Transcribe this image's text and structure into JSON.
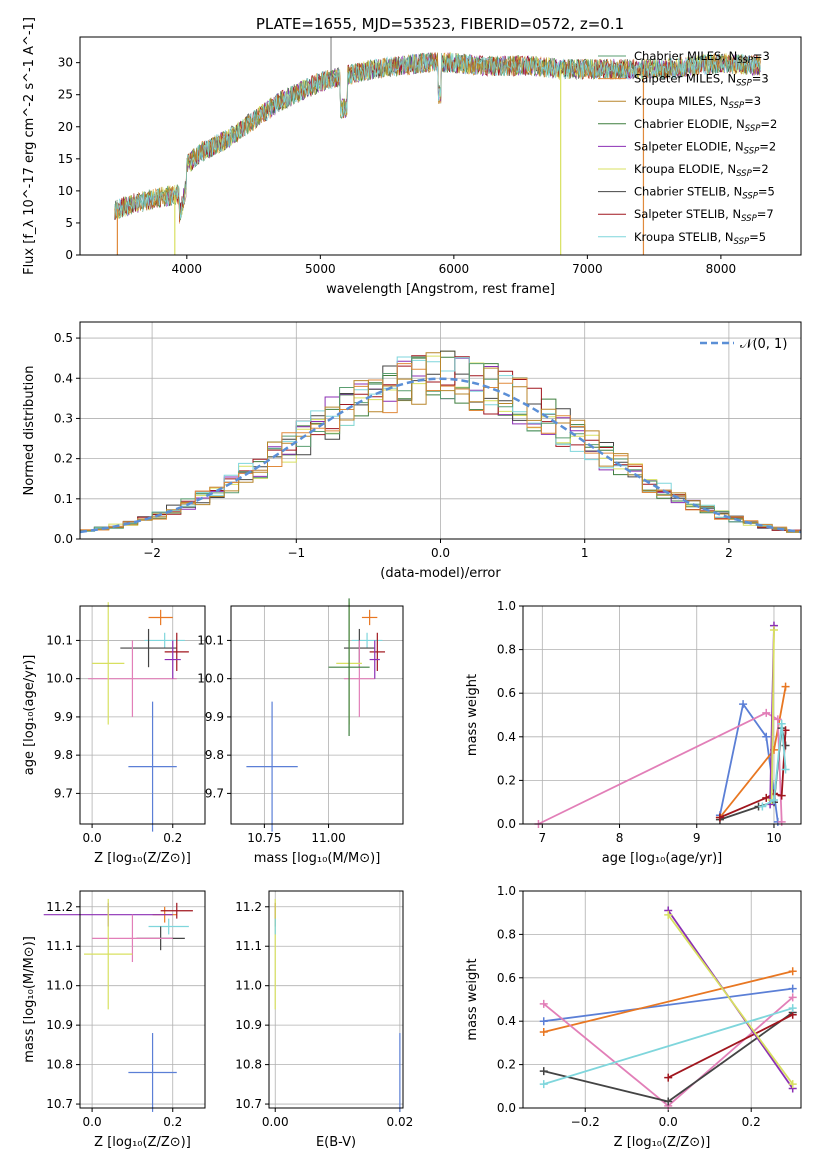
{
  "figure_title": "PLATE=1655, MJD=53523, FIBERID=0572, z=0.1",
  "legend": [
    {
      "label": "Chabrier MILES, N",
      "sub": "SSP",
      "suffix": "=3",
      "color": "#5a9e70"
    },
    {
      "label": "Salpeter MILES, N",
      "sub": "SSP",
      "suffix": "=3",
      "color": "#e08a3c"
    },
    {
      "label": "Kroupa MILES, N",
      "sub": "SSP",
      "suffix": "=3",
      "color": "#b8862b"
    },
    {
      "label": "Chabrier ELODIE, N",
      "sub": "SSP",
      "suffix": "=2",
      "color": "#3f7f3f"
    },
    {
      "label": "Salpeter ELODIE, N",
      "sub": "SSP",
      "suffix": "=2",
      "color": "#8b2fb4"
    },
    {
      "label": "Kroupa ELODIE, N",
      "sub": "SSP",
      "suffix": "=2",
      "color": "#d8e060"
    },
    {
      "label": "Chabrier STELIB, N",
      "sub": "SSP",
      "suffix": "=5",
      "color": "#444444"
    },
    {
      "label": "Salpeter STELIB, N",
      "sub": "SSP",
      "suffix": "=7",
      "color": "#a0161e"
    },
    {
      "label": "Kroupa STELIB, N",
      "sub": "SSP",
      "suffix": "=5",
      "color": "#7fd6dc"
    }
  ],
  "chart_data": [
    {
      "type": "line",
      "name": "spectrum",
      "xlabel": "wavelength [Angstrom, rest frame]",
      "ylabel": "Flux [f_λ 10^-17 erg cm^-2 s^-1 A^-1]",
      "xlim": [
        3200,
        8600
      ],
      "ylim": [
        0,
        34
      ],
      "xticks": [
        4000,
        5000,
        6000,
        7000,
        8000
      ],
      "yticks": [
        0,
        5,
        10,
        15,
        20,
        25,
        30
      ],
      "continuum": {
        "x": [
          3450,
          3600,
          3800,
          3950,
          4000,
          4100,
          4300,
          4500,
          4700,
          5000,
          5200,
          5400,
          5600,
          5800,
          6000,
          6200,
          6400,
          6600,
          6800,
          7000,
          7200,
          7400,
          7600,
          7800,
          8000,
          8300
        ],
        "y": [
          7,
          8,
          9,
          9.5,
          14,
          16,
          18,
          21,
          24,
          27,
          28,
          29,
          29.5,
          30,
          30,
          29.5,
          29.5,
          29.5,
          29,
          29,
          29,
          29,
          29,
          29.5,
          30,
          29.5
        ]
      },
      "grid": false
    },
    {
      "type": "bar",
      "name": "residual histogram",
      "xlabel": "(data-model)/error",
      "ylabel": "Normed distribution",
      "xlim": [
        -2.5,
        2.5
      ],
      "ylim": [
        0,
        0.54
      ],
      "xticks": [
        -2,
        -1,
        0,
        1,
        2
      ],
      "yticks": [
        0.0,
        0.1,
        0.2,
        0.3,
        0.4,
        0.5
      ],
      "normal_curve_label": "𝒩(0, 1)",
      "normal_color": "#5b8fd6",
      "bin_width": 0.1,
      "grid": true
    },
    {
      "type": "scatter",
      "name": "age vs Z",
      "xlabel": "Z [log₁₀(Z/Z⊙)]",
      "ylabel": "age  [log₁₀(age/yr)]",
      "xlim": [
        -0.03,
        0.28
      ],
      "ylim": [
        9.62,
        10.19
      ],
      "xticks": [
        0.0,
        0.2
      ],
      "yticks": [
        9.7,
        9.8,
        9.9,
        10.0,
        10.1
      ],
      "points": [
        {
          "color": "#5b7fd6",
          "x": 0.15,
          "xerr": 0.06,
          "y": 9.77,
          "yerr": 0.17
        },
        {
          "color": "#e87722",
          "x": 0.17,
          "xerr": 0.03,
          "y": 10.16,
          "yerr": 0.02
        },
        {
          "color": "#7fd6dc",
          "x": 0.18,
          "xerr": 0.05,
          "y": 10.1,
          "yerr": 0.02
        },
        {
          "color": "#444444",
          "x": 0.14,
          "xerr": 0.07,
          "y": 10.08,
          "yerr": 0.05
        },
        {
          "color": "#a0161e",
          "x": 0.21,
          "xerr": 0.03,
          "y": 10.07,
          "yerr": 0.05
        },
        {
          "color": "#e27fb8",
          "x": 0.1,
          "xerr": 0.11,
          "y": 10.0,
          "yerr": 0.1
        },
        {
          "color": "#d8e060",
          "x": 0.04,
          "xerr": 0.04,
          "y": 10.04,
          "yerr": 0.16
        },
        {
          "color": "#8b2fb4",
          "x": 0.2,
          "xerr": 0.02,
          "y": 10.05,
          "yerr": 0.05
        }
      ],
      "grid": true
    },
    {
      "type": "scatter",
      "name": "age vs mass",
      "xlabel": "mass [log₁₀(M/M⊙)]",
      "ylabel": "",
      "xlim": [
        10.62,
        11.29
      ],
      "ylim": [
        9.62,
        10.19
      ],
      "xticks": [
        10.75,
        11.0
      ],
      "yticks": [
        9.7,
        9.8,
        9.9,
        10.0,
        10.1
      ],
      "points": [
        {
          "color": "#5b7fd6",
          "x": 10.78,
          "xerr": 0.1,
          "y": 9.77,
          "yerr": 0.17
        },
        {
          "color": "#e87722",
          "x": 11.16,
          "xerr": 0.03,
          "y": 10.16,
          "yerr": 0.02
        },
        {
          "color": "#7fd6dc",
          "x": 11.15,
          "xerr": 0.06,
          "y": 10.1,
          "yerr": 0.02
        },
        {
          "color": "#444444",
          "x": 11.12,
          "xerr": 0.06,
          "y": 10.08,
          "yerr": 0.05
        },
        {
          "color": "#a0161e",
          "x": 11.19,
          "xerr": 0.03,
          "y": 10.07,
          "yerr": 0.05
        },
        {
          "color": "#e27fb8",
          "x": 11.12,
          "xerr": 0.06,
          "y": 10.0,
          "yerr": 0.1
        },
        {
          "color": "#d8e060",
          "x": 11.08,
          "xerr": 0.05,
          "y": 10.04,
          "yerr": 0.16
        },
        {
          "color": "#8b2fb4",
          "x": 11.18,
          "xerr": 0.02,
          "y": 10.05,
          "yerr": 0.05
        },
        {
          "color": "#3f7f3f",
          "x": 11.08,
          "xerr": 0.08,
          "y": 10.03,
          "yerr": 0.18
        }
      ],
      "grid": true
    },
    {
      "type": "line",
      "name": "mass weight vs age",
      "xlabel": "age  [log₁₀(age/yr)]",
      "ylabel": "mass weight",
      "xlim": [
        6.75,
        10.35
      ],
      "ylim": [
        0,
        1
      ],
      "xticks": [
        7,
        8,
        9,
        10
      ],
      "yticks": [
        0.0,
        0.2,
        0.4,
        0.6,
        0.8,
        1.0
      ],
      "series": [
        {
          "color": "#5b7fd6",
          "x": [
            9.3,
            9.6,
            9.9,
            10.05
          ],
          "y": [
            0.04,
            0.55,
            0.4,
            0.01
          ]
        },
        {
          "color": "#e87722",
          "x": [
            9.3,
            10.0,
            10.15
          ],
          "y": [
            0.03,
            0.34,
            0.63
          ]
        },
        {
          "color": "#e27fb8",
          "x": [
            6.95,
            9.9,
            10.05,
            10.1
          ],
          "y": [
            0.0,
            0.51,
            0.48,
            0.01
          ]
        },
        {
          "color": "#444444",
          "x": [
            9.3,
            9.8,
            10.0,
            10.1,
            10.15
          ],
          "y": [
            0.02,
            0.08,
            0.1,
            0.44,
            0.36
          ]
        },
        {
          "color": "#a0161e",
          "x": [
            9.3,
            9.9,
            10.0,
            10.1,
            10.15
          ],
          "y": [
            0.03,
            0.12,
            0.14,
            0.13,
            0.43
          ]
        },
        {
          "color": "#8b2fb4",
          "x": [
            9.95,
            10.0
          ],
          "y": [
            0.09,
            0.91
          ]
        },
        {
          "color": "#d8e060",
          "x": [
            9.97,
            10.0
          ],
          "y": [
            0.11,
            0.89
          ]
        },
        {
          "color": "#7fd6dc",
          "x": [
            9.85,
            10.0,
            10.1,
            10.15
          ],
          "y": [
            0.08,
            0.11,
            0.46,
            0.25
          ]
        }
      ],
      "grid": true
    },
    {
      "type": "scatter",
      "name": "mass vs Z",
      "xlabel": "Z [log₁₀(Z/Z⊙)]",
      "ylabel": "mass [log₁₀(M/M⊙)]",
      "xlim": [
        -0.03,
        0.28
      ],
      "ylim": [
        10.69,
        11.24
      ],
      "xticks": [
        0.0,
        0.2
      ],
      "yticks": [
        10.7,
        10.8,
        10.9,
        11.0,
        11.1,
        11.2
      ],
      "points": [
        {
          "color": "#5b7fd6",
          "x": 0.15,
          "xerr": 0.06,
          "y": 10.78,
          "yerr": 0.1
        },
        {
          "color": "#e87722",
          "x": 0.18,
          "xerr": 0.03,
          "y": 11.18,
          "yerr": 0.02
        },
        {
          "color": "#7fd6dc",
          "x": 0.19,
          "xerr": 0.05,
          "y": 11.15,
          "yerr": 0.02
        },
        {
          "color": "#444444",
          "x": 0.17,
          "xerr": 0.06,
          "y": 11.12,
          "yerr": 0.03
        },
        {
          "color": "#a0161e",
          "x": 0.21,
          "xerr": 0.04,
          "y": 11.19,
          "yerr": 0.02
        },
        {
          "color": "#8b2fb4",
          "x": 0.04,
          "xerr": 0.16,
          "y": 11.18,
          "yerr": 0.03
        },
        {
          "color": "#e27fb8",
          "x": 0.1,
          "xerr": 0.1,
          "y": 11.12,
          "yerr": 0.06
        },
        {
          "color": "#d8e060",
          "x": 0.04,
          "xerr": 0.06,
          "y": 11.08,
          "yerr": 0.14
        }
      ],
      "grid": true
    },
    {
      "type": "scatter",
      "name": "mass vs E(B-V)",
      "xlabel": "E(B-V)",
      "ylabel": "",
      "xlim": [
        -0.001,
        0.0205
      ],
      "ylim": [
        10.69,
        11.24
      ],
      "xticks": [
        0.0,
        0.02
      ],
      "yticks": [
        10.7,
        10.8,
        10.9,
        11.0,
        11.1,
        11.2
      ],
      "points": [
        {
          "color": "#5b7fd6",
          "x": 0.02,
          "xerr": 0,
          "y": 10.78,
          "yerr": 0.1
        },
        {
          "color": "#a0161e",
          "x": 0.0,
          "xerr": 0,
          "y": 11.18,
          "yerr": 0.03
        },
        {
          "color": "#d8e060",
          "x": 0.0,
          "xerr": 0,
          "y": 11.08,
          "yerr": 0.14
        },
        {
          "color": "#7fd6dc",
          "x": 0.0,
          "xerr": 0,
          "y": 11.15,
          "yerr": 0.02
        }
      ],
      "grid": true
    },
    {
      "type": "line",
      "name": "mass weight vs Z",
      "xlabel": "Z [log₁₀(Z/Z⊙)]",
      "ylabel": "mass weight",
      "xlim": [
        -0.35,
        0.32
      ],
      "ylim": [
        0,
        1
      ],
      "xticks": [
        -0.2,
        0.0,
        0.2
      ],
      "yticks": [
        0.0,
        0.2,
        0.4,
        0.6,
        0.8,
        1.0
      ],
      "series": [
        {
          "color": "#5b7fd6",
          "x": [
            -0.3,
            0.3
          ],
          "y": [
            0.4,
            0.55
          ]
        },
        {
          "color": "#e87722",
          "x": [
            -0.3,
            0.3
          ],
          "y": [
            0.35,
            0.63
          ]
        },
        {
          "color": "#e27fb8",
          "x": [
            -0.3,
            0.0,
            0.3
          ],
          "y": [
            0.48,
            0.01,
            0.51
          ]
        },
        {
          "color": "#444444",
          "x": [
            -0.3,
            0.0,
            0.3
          ],
          "y": [
            0.17,
            0.03,
            0.44
          ]
        },
        {
          "color": "#a0161e",
          "x": [
            0.0,
            0.3
          ],
          "y": [
            0.14,
            0.43
          ]
        },
        {
          "color": "#8b2fb4",
          "x": [
            0.0,
            0.3
          ],
          "y": [
            0.91,
            0.09
          ]
        },
        {
          "color": "#d8e060",
          "x": [
            0.0,
            0.3
          ],
          "y": [
            0.89,
            0.11
          ]
        },
        {
          "color": "#7fd6dc",
          "x": [
            -0.3,
            0.3
          ],
          "y": [
            0.11,
            0.46
          ]
        }
      ],
      "grid": true
    }
  ]
}
